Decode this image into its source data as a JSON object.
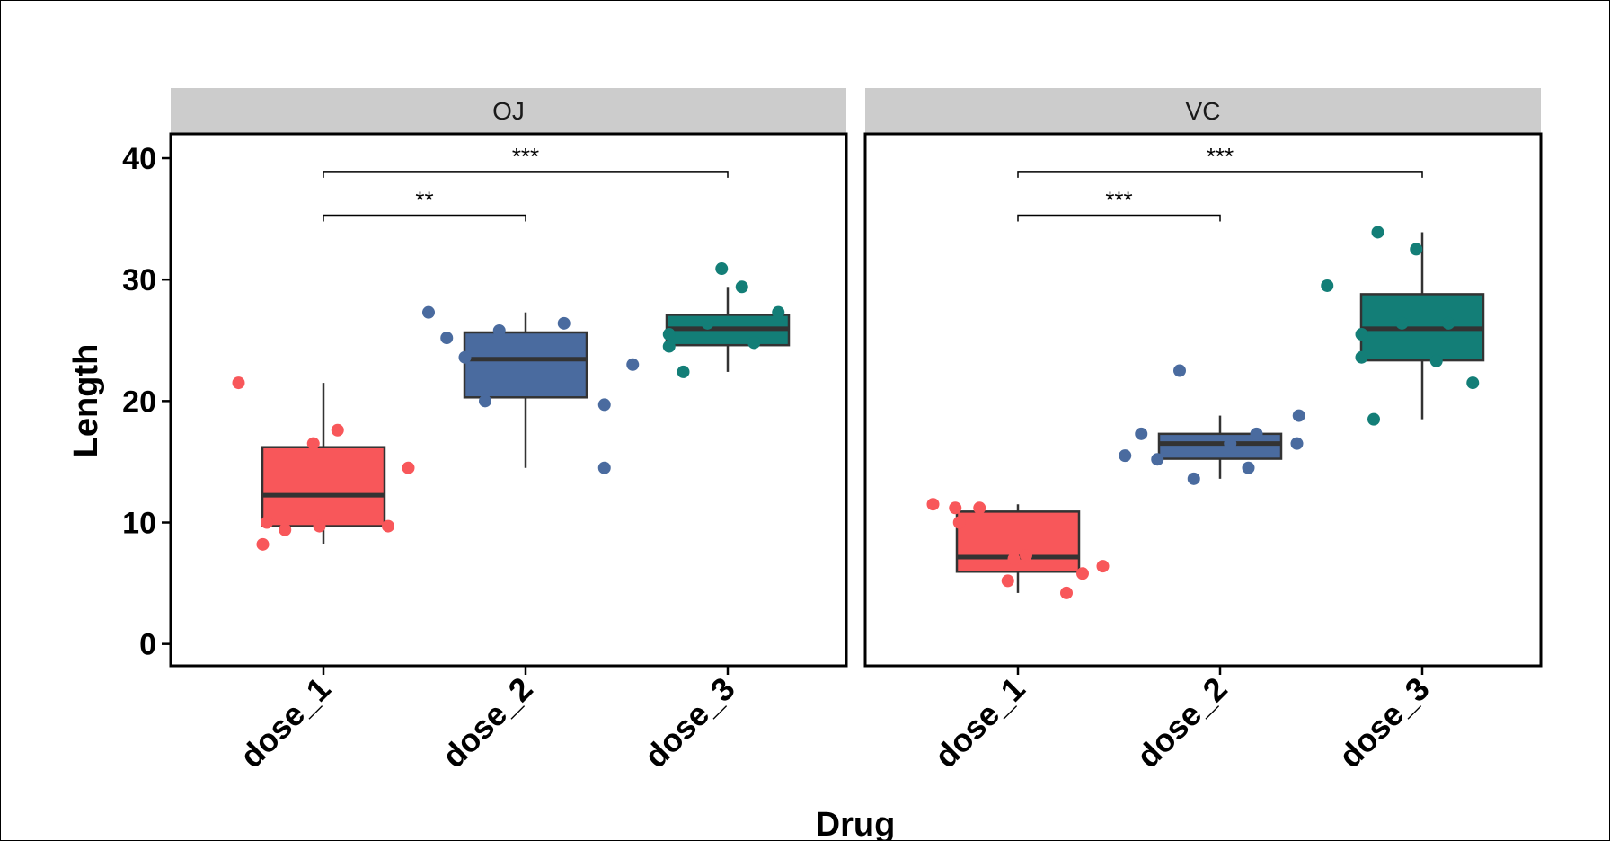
{
  "chart_data": {
    "type": "boxplot",
    "xlabel": "Drug",
    "ylabel": "Length",
    "ylim": [
      -1.8,
      42
    ],
    "yticks": [
      0,
      10,
      20,
      30,
      40
    ],
    "categories": [
      "dose_1",
      "dose_2",
      "dose_3"
    ],
    "colors": {
      "dose_1": "#F8575A",
      "dose_2": "#4A6B9F",
      "dose_3": "#137E77"
    },
    "panels": [
      {
        "strip": "OJ",
        "boxes": [
          {
            "category": "dose_1",
            "min": 8.2,
            "q1": 9.7,
            "median": 12.25,
            "q3": 16.2,
            "max": 21.5
          },
          {
            "category": "dose_2",
            "min": 14.5,
            "q1": 20.3,
            "median": 23.45,
            "q3": 25.65,
            "max": 27.3
          },
          {
            "category": "dose_3",
            "min": 22.4,
            "q1": 24.6,
            "median": 25.95,
            "q3": 27.1,
            "max": 29.4
          }
        ],
        "points": [
          {
            "category": "dose_1",
            "dx": -0.42,
            "y": 21.5
          },
          {
            "category": "dose_1",
            "dx": 0.42,
            "y": 14.5
          },
          {
            "category": "dose_1",
            "dx": 0.07,
            "y": 17.6
          },
          {
            "category": "dose_1",
            "dx": -0.05,
            "y": 16.5
          },
          {
            "category": "dose_1",
            "dx": -0.28,
            "y": 10.0
          },
          {
            "category": "dose_1",
            "dx": -0.19,
            "y": 9.4
          },
          {
            "category": "dose_1",
            "dx": -0.02,
            "y": 9.7
          },
          {
            "category": "dose_1",
            "dx": 0.32,
            "y": 9.7
          },
          {
            "category": "dose_1",
            "dx": -0.3,
            "y": 8.2
          },
          {
            "category": "dose_2",
            "dx": -0.48,
            "y": 27.3
          },
          {
            "category": "dose_2",
            "dx": -0.39,
            "y": 25.2
          },
          {
            "category": "dose_2",
            "dx": -0.3,
            "y": 23.6
          },
          {
            "category": "dose_2",
            "dx": -0.2,
            "y": 20.0
          },
          {
            "category": "dose_2",
            "dx": -0.13,
            "y": 25.8
          },
          {
            "category": "dose_2",
            "dx": 0.19,
            "y": 26.4
          },
          {
            "category": "dose_2",
            "dx": 0.39,
            "y": 19.7
          },
          {
            "category": "dose_2",
            "dx": 0.39,
            "y": 14.5
          },
          {
            "category": "dose_2",
            "dx": 0.53,
            "y": 23.0
          },
          {
            "category": "dose_3",
            "dx": -0.03,
            "y": 30.9
          },
          {
            "category": "dose_3",
            "dx": 0.07,
            "y": 29.4
          },
          {
            "category": "dose_3",
            "dx": -0.29,
            "y": 25.5
          },
          {
            "category": "dose_3",
            "dx": -0.29,
            "y": 24.5
          },
          {
            "category": "dose_3",
            "dx": -0.22,
            "y": 22.4
          },
          {
            "category": "dose_3",
            "dx": -0.1,
            "y": 26.4
          },
          {
            "category": "dose_3",
            "dx": 0.13,
            "y": 24.8
          },
          {
            "category": "dose_3",
            "dx": 0.25,
            "y": 27.3
          }
        ],
        "brackets": [
          {
            "from": "dose_1",
            "to": "dose_2",
            "y": 35.3,
            "label": "**"
          },
          {
            "from": "dose_1",
            "to": "dose_3",
            "y": 38.9,
            "label": "***"
          }
        ]
      },
      {
        "strip": "VC",
        "boxes": [
          {
            "category": "dose_1",
            "min": 4.2,
            "q1": 5.95,
            "median": 7.15,
            "q3": 10.9,
            "max": 11.5
          },
          {
            "category": "dose_2",
            "min": 13.6,
            "q1": 15.25,
            "median": 16.5,
            "q3": 17.3,
            "max": 18.8
          },
          {
            "category": "dose_3",
            "min": 18.5,
            "q1": 23.35,
            "median": 25.95,
            "q3": 28.8,
            "max": 33.9
          }
        ],
        "points": [
          {
            "category": "dose_1",
            "dx": -0.42,
            "y": 11.5
          },
          {
            "category": "dose_1",
            "dx": -0.31,
            "y": 11.2
          },
          {
            "category": "dose_1",
            "dx": -0.19,
            "y": 11.2
          },
          {
            "category": "dose_1",
            "dx": -0.29,
            "y": 10.0
          },
          {
            "category": "dose_1",
            "dx": -0.02,
            "y": 7.0
          },
          {
            "category": "dose_1",
            "dx": 0.04,
            "y": 7.3
          },
          {
            "category": "dose_1",
            "dx": -0.05,
            "y": 5.2
          },
          {
            "category": "dose_1",
            "dx": 0.32,
            "y": 5.8
          },
          {
            "category": "dose_1",
            "dx": 0.24,
            "y": 4.2
          },
          {
            "category": "dose_1",
            "dx": 0.42,
            "y": 6.4
          },
          {
            "category": "dose_2",
            "dx": -0.47,
            "y": 15.5
          },
          {
            "category": "dose_2",
            "dx": -0.39,
            "y": 17.3
          },
          {
            "category": "dose_2",
            "dx": -0.31,
            "y": 15.2
          },
          {
            "category": "dose_2",
            "dx": -0.2,
            "y": 22.5
          },
          {
            "category": "dose_2",
            "dx": -0.13,
            "y": 13.6
          },
          {
            "category": "dose_2",
            "dx": 0.05,
            "y": 16.5
          },
          {
            "category": "dose_2",
            "dx": 0.14,
            "y": 14.5
          },
          {
            "category": "dose_2",
            "dx": 0.18,
            "y": 17.3
          },
          {
            "category": "dose_2",
            "dx": 0.38,
            "y": 16.5
          },
          {
            "category": "dose_2",
            "dx": 0.39,
            "y": 18.8
          },
          {
            "category": "dose_3",
            "dx": -0.47,
            "y": 29.5
          },
          {
            "category": "dose_3",
            "dx": -0.22,
            "y": 33.9
          },
          {
            "category": "dose_3",
            "dx": -0.24,
            "y": 18.5
          },
          {
            "category": "dose_3",
            "dx": -0.3,
            "y": 25.5
          },
          {
            "category": "dose_3",
            "dx": -0.3,
            "y": 23.6
          },
          {
            "category": "dose_3",
            "dx": -0.1,
            "y": 26.4
          },
          {
            "category": "dose_3",
            "dx": 0.07,
            "y": 23.3
          },
          {
            "category": "dose_3",
            "dx": -0.03,
            "y": 32.5
          },
          {
            "category": "dose_3",
            "dx": 0.13,
            "y": 26.4
          },
          {
            "category": "dose_3",
            "dx": 0.25,
            "y": 21.5
          }
        ],
        "brackets": [
          {
            "from": "dose_1",
            "to": "dose_2",
            "y": 35.3,
            "label": "***"
          },
          {
            "from": "dose_1",
            "to": "dose_3",
            "y": 38.9,
            "label": "***"
          }
        ]
      }
    ]
  }
}
